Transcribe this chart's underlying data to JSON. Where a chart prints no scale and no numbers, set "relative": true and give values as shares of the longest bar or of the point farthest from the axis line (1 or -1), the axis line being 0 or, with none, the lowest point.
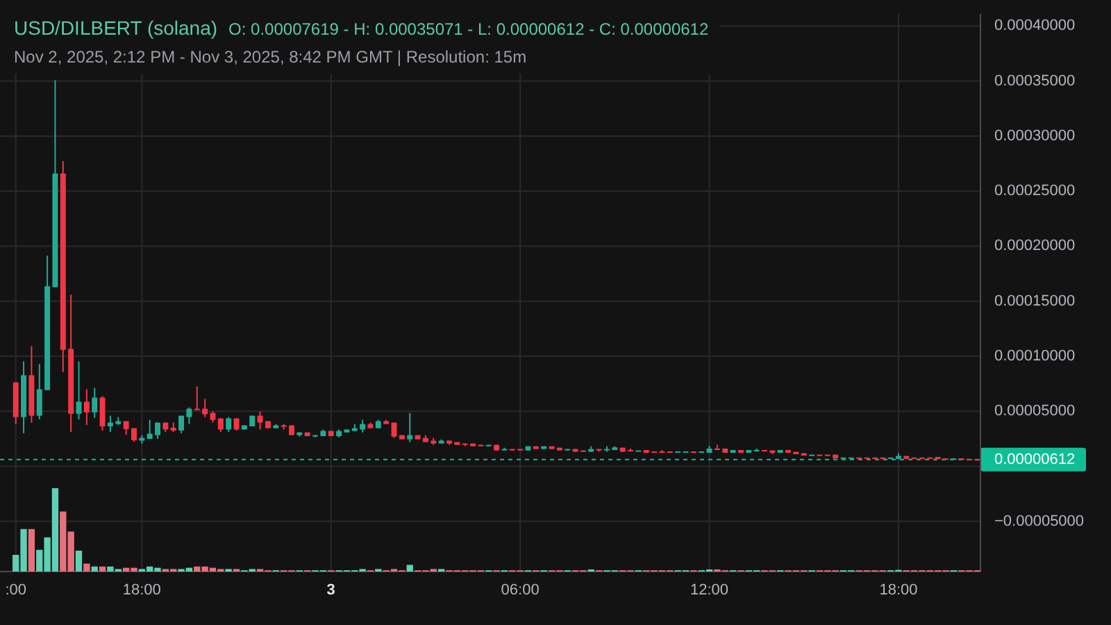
{
  "chart_data": [
    {
      "type": "candlestick",
      "title": "USD/DILBERT (solana)",
      "subtitle": "Nov 2, 2025, 2:12 PM - Nov 3, 2025, 8:42 PM GMT | Resolution: 15m",
      "annotations": [
        "O: 0.00007619 - H: 0.00035071 - L: 0.00000612 - C: 0.00000612"
      ],
      "x": [
        "2025-11-02T14:00",
        "2025-11-02T14:15",
        "2025-11-02T14:30",
        "2025-11-02T14:45",
        "2025-11-02T15:00",
        "2025-11-02T15:15",
        "2025-11-02T15:30",
        "2025-11-02T15:45",
        "2025-11-02T16:00",
        "2025-11-02T16:15",
        "2025-11-02T16:30",
        "2025-11-02T16:45",
        "2025-11-02T17:00",
        "2025-11-02T17:15",
        "2025-11-02T17:30",
        "2025-11-02T17:45",
        "2025-11-02T18:00",
        "2025-11-02T18:15",
        "2025-11-02T18:30",
        "2025-11-02T18:45",
        "2025-11-02T19:00",
        "2025-11-02T19:15",
        "2025-11-02T19:30",
        "2025-11-02T19:45",
        "2025-11-02T20:00",
        "2025-11-02T20:15",
        "2025-11-02T20:30",
        "2025-11-02T20:45",
        "2025-11-02T21:00",
        "2025-11-02T21:15",
        "2025-11-02T21:30",
        "2025-11-02T21:45",
        "2025-11-02T22:00",
        "2025-11-02T22:15",
        "2025-11-02T22:30",
        "2025-11-02T22:45",
        "2025-11-02T23:00",
        "2025-11-02T23:15",
        "2025-11-02T23:30",
        "2025-11-02T23:45",
        "2025-11-03T00:00",
        "2025-11-03T00:15",
        "2025-11-03T00:30",
        "2025-11-03T00:45",
        "2025-11-03T01:00",
        "2025-11-03T01:15",
        "2025-11-03T01:30",
        "2025-11-03T01:45",
        "2025-11-03T02:00",
        "2025-11-03T02:15",
        "2025-11-03T02:30",
        "2025-11-03T02:45",
        "2025-11-03T03:00",
        "2025-11-03T03:15",
        "2025-11-03T03:30",
        "2025-11-03T03:45",
        "2025-11-03T04:00",
        "2025-11-03T04:15",
        "2025-11-03T04:30",
        "2025-11-03T04:45",
        "2025-11-03T05:00",
        "2025-11-03T05:15",
        "2025-11-03T05:30",
        "2025-11-03T05:45",
        "2025-11-03T06:00",
        "2025-11-03T06:15",
        "2025-11-03T06:30",
        "2025-11-03T06:45",
        "2025-11-03T07:00",
        "2025-11-03T07:15",
        "2025-11-03T07:30",
        "2025-11-03T07:45",
        "2025-11-03T08:00",
        "2025-11-03T08:15",
        "2025-11-03T08:30",
        "2025-11-03T08:45",
        "2025-11-03T09:00",
        "2025-11-03T09:15",
        "2025-11-03T09:30",
        "2025-11-03T09:45",
        "2025-11-03T10:00",
        "2025-11-03T10:15",
        "2025-11-03T10:30",
        "2025-11-03T10:45",
        "2025-11-03T11:00",
        "2025-11-03T11:15",
        "2025-11-03T11:30",
        "2025-11-03T11:45",
        "2025-11-03T12:00",
        "2025-11-03T12:15",
        "2025-11-03T12:30",
        "2025-11-03T12:45",
        "2025-11-03T13:00",
        "2025-11-03T13:15",
        "2025-11-03T13:30",
        "2025-11-03T13:45",
        "2025-11-03T14:00",
        "2025-11-03T14:15",
        "2025-11-03T14:30",
        "2025-11-03T14:45",
        "2025-11-03T15:00",
        "2025-11-03T15:15",
        "2025-11-03T15:30",
        "2025-11-03T15:45",
        "2025-11-03T16:00",
        "2025-11-03T16:15",
        "2025-11-03T16:30",
        "2025-11-03T16:45",
        "2025-11-03T17:00",
        "2025-11-03T17:15",
        "2025-11-03T17:30",
        "2025-11-03T17:45",
        "2025-11-03T18:00",
        "2025-11-03T18:15",
        "2025-11-03T18:30",
        "2025-11-03T18:45",
        "2025-11-03T19:00",
        "2025-11-03T19:15",
        "2025-11-03T19:30",
        "2025-11-03T19:45",
        "2025-11-03T20:00",
        "2025-11-03T20:15",
        "2025-11-03T20:30"
      ],
      "ohlc": [
        [
          7.619e-05,
          7.619e-05,
          3.84e-05,
          4.47e-05
        ],
        [
          4.47e-05,
          9.53e-05,
          3e-05,
          8.27e-05
        ],
        [
          8.27e-05,
          0.0001092,
          3.97e-05,
          4.6e-05
        ],
        [
          4.6e-05,
          9.28e-05,
          4.26e-05,
          7e-05
        ],
        [
          6.92e-05,
          0.0001914,
          6.92e-05,
          0.0001636
        ],
        [
          0.0001627,
          0.00035071,
          0.0001627,
          0.000266
        ],
        [
          0.000266,
          0.0002773,
          8.56e-05,
          0.0001058
        ],
        [
          0.0001067,
          0.000156,
          3.12e-05,
          4.77e-05
        ],
        [
          4.77e-05,
          9.53e-05,
          4.26e-05,
          5.87e-05
        ],
        [
          5.87e-05,
          7e-05,
          3.76e-05,
          4.9e-05
        ],
        [
          4.9e-05,
          7.13e-05,
          4.39e-05,
          6.24e-05
        ],
        [
          6.24e-05,
          6.37e-05,
          3.25e-05,
          3.63e-05
        ],
        [
          3.63e-05,
          4.6e-05,
          3.12e-05,
          3.97e-05
        ],
        [
          3.84e-05,
          4.47e-05,
          3.76e-05,
          4.1e-05
        ],
        [
          4.1e-05,
          4.1e-05,
          2.87e-05,
          3.38e-05
        ],
        [
          3.46e-05,
          3.46e-05,
          2.24e-05,
          2.37e-05
        ],
        [
          2.33e-05,
          2.83e-05,
          2.07e-05,
          2.58e-05
        ],
        [
          2.49e-05,
          4.22e-05,
          2.49e-05,
          2.96e-05
        ],
        [
          2.83e-05,
          3.97e-05,
          2.49e-05,
          3.97e-05
        ],
        [
          3.97e-05,
          3.97e-05,
          3.12e-05,
          3.34e-05
        ],
        [
          3.5e-05,
          3.97e-05,
          3.12e-05,
          3.25e-05
        ],
        [
          3.25e-05,
          4.6e-05,
          3e-05,
          4.6e-05
        ],
        [
          4.47e-05,
          5.36e-05,
          3.84e-05,
          5.23e-05
        ],
        [
          5.23e-05,
          7.26e-05,
          5.1e-05,
          5.1e-05
        ],
        [
          5.23e-05,
          6.12e-05,
          4.47e-05,
          4.73e-05
        ],
        [
          4.85e-05,
          4.98e-05,
          3.97e-05,
          4.22e-05
        ],
        [
          4.35e-05,
          4.35e-05,
          3.12e-05,
          3.34e-05
        ],
        [
          3.34e-05,
          4.47e-05,
          3.12e-05,
          4.35e-05
        ],
        [
          4.35e-05,
          4.35e-05,
          3.25e-05,
          3.34e-05
        ],
        [
          3.34e-05,
          3.72e-05,
          3.34e-05,
          3.72e-05
        ],
        [
          3.63e-05,
          4.6e-05,
          3.63e-05,
          4.6e-05
        ],
        [
          4.6e-05,
          4.98e-05,
          3.34e-05,
          3.97e-05
        ],
        [
          4.1e-05,
          4.1e-05,
          3.46e-05,
          3.46e-05
        ],
        [
          3.46e-05,
          3.84e-05,
          3.46e-05,
          3.72e-05
        ],
        [
          3.72e-05,
          3.84e-05,
          3.34e-05,
          3.59e-05
        ],
        [
          3.72e-05,
          3.72e-05,
          2.83e-05,
          2.83e-05
        ],
        [
          2.83e-05,
          3.08e-05,
          2.7e-05,
          3.08e-05
        ],
        [
          3.08e-05,
          3.08e-05,
          2.74e-05,
          2.74e-05
        ],
        [
          2.74e-05,
          2.83e-05,
          2.62e-05,
          2.83e-05
        ],
        [
          2.74e-05,
          3.34e-05,
          2.74e-05,
          3.21e-05
        ],
        [
          3.21e-05,
          3.21e-05,
          2.74e-05,
          2.74e-05
        ],
        [
          2.74e-05,
          3.34e-05,
          2.62e-05,
          3.21e-05
        ],
        [
          3.08e-05,
          3.34e-05,
          3.08e-05,
          3.34e-05
        ],
        [
          3.21e-05,
          3.84e-05,
          3.21e-05,
          3.46e-05
        ],
        [
          3.34e-05,
          4.22e-05,
          3.08e-05,
          3.84e-05
        ],
        [
          3.84e-05,
          3.97e-05,
          3.46e-05,
          3.46e-05
        ],
        [
          3.46e-05,
          4.22e-05,
          3.46e-05,
          4.1e-05
        ],
        [
          4.1e-05,
          4.22e-05,
          3.84e-05,
          3.84e-05
        ],
        [
          3.97e-05,
          3.97e-05,
          2.58e-05,
          2.7e-05
        ],
        [
          2.83e-05,
          2.83e-05,
          2.45e-05,
          2.45e-05
        ],
        [
          2.45e-05,
          4.85e-05,
          2.2e-05,
          2.83e-05
        ],
        [
          2.83e-05,
          2.83e-05,
          2.45e-05,
          2.45e-05
        ],
        [
          2.58e-05,
          2.83e-05,
          2.2e-05,
          2.2e-05
        ],
        [
          2.33e-05,
          2.58e-05,
          1.95e-05,
          2.07e-05
        ],
        [
          2.07e-05,
          2.45e-05,
          2.07e-05,
          2.33e-05
        ],
        [
          2.33e-05,
          2.33e-05,
          1.95e-05,
          2.07e-05
        ],
        [
          2.2e-05,
          2.2e-05,
          1.95e-05,
          1.95e-05
        ],
        [
          2.07e-05,
          2.07e-05,
          1.82e-05,
          1.95e-05
        ],
        [
          2.07e-05,
          2.07e-05,
          1.82e-05,
          1.82e-05
        ],
        [
          1.95e-05,
          1.95e-05,
          1.82e-05,
          1.82e-05
        ],
        [
          1.82e-05,
          1.95e-05,
          1.82e-05,
          1.95e-05
        ],
        [
          1.95e-05,
          1.95e-05,
          1.44e-05,
          1.44e-05
        ],
        [
          1.44e-05,
          1.69e-05,
          1.44e-05,
          1.57e-05
        ],
        [
          1.57e-05,
          1.57e-05,
          1.44e-05,
          1.44e-05
        ],
        [
          1.57e-05,
          1.57e-05,
          1.44e-05,
          1.44e-05
        ],
        [
          1.44e-05,
          1.82e-05,
          1.44e-05,
          1.82e-05
        ],
        [
          1.82e-05,
          1.82e-05,
          1.57e-05,
          1.57e-05
        ],
        [
          1.57e-05,
          1.82e-05,
          1.57e-05,
          1.82e-05
        ],
        [
          1.82e-05,
          1.82e-05,
          1.57e-05,
          1.57e-05
        ],
        [
          1.69e-05,
          1.69e-05,
          1.44e-05,
          1.44e-05
        ],
        [
          1.44e-05,
          1.57e-05,
          1.44e-05,
          1.57e-05
        ],
        [
          1.57e-05,
          1.57e-05,
          1.32e-05,
          1.32e-05
        ],
        [
          1.44e-05,
          1.44e-05,
          1.32e-05,
          1.32e-05
        ],
        [
          1.32e-05,
          1.82e-05,
          1.32e-05,
          1.57e-05
        ],
        [
          1.57e-05,
          1.57e-05,
          1.32e-05,
          1.44e-05
        ],
        [
          1.44e-05,
          1.82e-05,
          1.32e-05,
          1.57e-05
        ],
        [
          1.48e-05,
          1.82e-05,
          1.48e-05,
          1.72e-05
        ],
        [
          1.69e-05,
          1.69e-05,
          1.32e-05,
          1.32e-05
        ],
        [
          1.48e-05,
          1.61e-05,
          1.35e-05,
          1.35e-05
        ],
        [
          1.35e-05,
          1.44e-05,
          1.35e-05,
          1.44e-05
        ],
        [
          1.48e-05,
          1.48e-05,
          1.23e-05,
          1.23e-05
        ],
        [
          1.35e-05,
          1.35e-05,
          1.23e-05,
          1.23e-05
        ],
        [
          1.35e-05,
          1.48e-05,
          1.23e-05,
          1.23e-05
        ],
        [
          1.35e-05,
          1.35e-05,
          1.23e-05,
          1.23e-05
        ],
        [
          1.23e-05,
          1.35e-05,
          1.23e-05,
          1.35e-05
        ],
        [
          1.23e-05,
          1.35e-05,
          1.23e-05,
          1.35e-05
        ],
        [
          1.35e-05,
          1.35e-05,
          1.23e-05,
          1.23e-05
        ],
        [
          1.23e-05,
          1.35e-05,
          1.23e-05,
          1.35e-05
        ],
        [
          1.23e-05,
          1.86e-05,
          1.23e-05,
          1.61e-05
        ],
        [
          1.61e-05,
          1.95e-05,
          1.48e-05,
          1.48e-05
        ],
        [
          1.61e-05,
          1.61e-05,
          1.23e-05,
          1.23e-05
        ],
        [
          1.23e-05,
          1.48e-05,
          1.23e-05,
          1.48e-05
        ],
        [
          1.48e-05,
          1.48e-05,
          1.23e-05,
          1.23e-05
        ],
        [
          1.23e-05,
          1.48e-05,
          1.23e-05,
          1.48e-05
        ],
        [
          1.35e-05,
          1.61e-05,
          1.35e-05,
          1.48e-05
        ],
        [
          1.48e-05,
          1.48e-05,
          1.35e-05,
          1.35e-05
        ],
        [
          1.44e-05,
          1.44e-05,
          1.1e-05,
          1.23e-05
        ],
        [
          1.23e-05,
          1.48e-05,
          1.23e-05,
          1.48e-05
        ],
        [
          1.48e-05,
          1.48e-05,
          1.23e-05,
          1.23e-05
        ],
        [
          1.31e-05,
          1.31e-05,
          1.1e-05,
          1.1e-05
        ],
        [
          1.19e-05,
          1.19e-05,
          9.7e-06,
          9.7e-06
        ],
        [
          9.7e-06,
          1.06e-05,
          9.7e-06,
          1.06e-05
        ],
        [
          1.06e-05,
          1.06e-05,
          9.7e-06,
          9.7e-06
        ],
        [
          1.06e-05,
          1.06e-05,
          9.7e-06,
          9.7e-06
        ],
        [
          1.06e-05,
          1.06e-05,
          7.2e-06,
          7.2e-06
        ],
        [
          7.2e-06,
          8e-06,
          7.2e-06,
          8e-06
        ],
        [
          7.2e-06,
          8e-06,
          7.2e-06,
          8e-06
        ],
        [
          8e-06,
          8e-06,
          7.2e-06,
          7.2e-06
        ],
        [
          8e-06,
          8e-06,
          6.3e-06,
          7.2e-06
        ],
        [
          8e-06,
          8e-06,
          7.2e-06,
          7.2e-06
        ],
        [
          8e-06,
          8e-06,
          6.3e-06,
          7.2e-06
        ],
        [
          7.2e-06,
          8e-06,
          7.2e-06,
          8e-06
        ],
        [
          6.8e-06,
          1.19e-05,
          6.8e-06,
          9.4e-06
        ],
        [
          9.4e-06,
          9.4e-06,
          6.8e-06,
          6.8e-06
        ],
        [
          8e-06,
          8e-06,
          7.2e-06,
          7.2e-06
        ],
        [
          8e-06,
          8e-06,
          7.2e-06,
          7.2e-06
        ],
        [
          8e-06,
          8e-06,
          7.2e-06,
          7.2e-06
        ],
        [
          8.5e-06,
          8.5e-06,
          6.6e-06,
          6.6e-06
        ],
        [
          7.2e-06,
          7.2e-06,
          6.4e-06,
          6.4e-06
        ],
        [
          6.4e-06,
          7.2e-06,
          6.4e-06,
          7.2e-06
        ],
        [
          7.2e-06,
          7.2e-06,
          6.2e-06,
          6.2e-06
        ],
        [
          6.6e-06,
          6.6e-06,
          6.2e-06,
          6.2e-06
        ],
        [
          6.5e-06,
          6.5e-06,
          6.12e-06,
          6.12e-06
        ]
      ],
      "colors": [
        "#f23645",
        "#22ab94",
        "#f23645",
        "#22ab94",
        "#22ab94",
        "#22ab94",
        "#f23645",
        "#f23645",
        "#22ab94",
        "#f23645",
        "#22ab94",
        "#f23645",
        "#22ab94",
        "#22ab94",
        "#f23645",
        "#f23645",
        "#22ab94",
        "#22ab94",
        "#22ab94",
        "#f23645",
        "#f23645",
        "#22ab94",
        "#22ab94",
        "#f23645",
        "#f23645",
        "#f23645",
        "#f23645",
        "#22ab94",
        "#f23645",
        "#22ab94",
        "#22ab94",
        "#f23645",
        "#f23645",
        "#22ab94",
        "#f23645",
        "#f23645",
        "#22ab94",
        "#f23645",
        "#22ab94",
        "#22ab94",
        "#f23645",
        "#22ab94",
        "#22ab94",
        "#22ab94",
        "#22ab94",
        "#f23645",
        "#22ab94",
        "#f23645",
        "#f23645",
        "#f23645",
        "#22ab94",
        "#f23645",
        "#f23645",
        "#f23645",
        "#22ab94",
        "#f23645",
        "#f23645",
        "#f23645",
        "#f23645",
        "#f23645",
        "#22ab94",
        "#f23645",
        "#22ab94",
        "#f23645",
        "#f23645",
        "#22ab94",
        "#f23645",
        "#22ab94",
        "#f23645",
        "#f23645",
        "#22ab94",
        "#f23645",
        "#f23645",
        "#22ab94",
        "#f23645",
        "#22ab94",
        "#22ab94",
        "#f23645",
        "#f23645",
        "#22ab94",
        "#f23645",
        "#f23645",
        "#f23645",
        "#f23645",
        "#22ab94",
        "#22ab94",
        "#f23645",
        "#22ab94",
        "#22ab94",
        "#f23645",
        "#f23645",
        "#22ab94",
        "#f23645",
        "#22ab94",
        "#22ab94",
        "#f23645",
        "#f23645",
        "#22ab94",
        "#f23645",
        "#f23645",
        "#f23645",
        "#22ab94",
        "#f23645",
        "#f23645",
        "#f23645",
        "#22ab94",
        "#22ab94",
        "#f23645",
        "#f23645",
        "#f23645",
        "#f23645",
        "#22ab94",
        "#22ab94",
        "#f23645",
        "#f23645",
        "#f23645",
        "#f23645",
        "#f23645",
        "#f23645",
        "#22ab94",
        "#f23645",
        "#f23645",
        "#f23645"
      ],
      "xlim": [
        "2025-11-02T13:30",
        "2025-11-03T20:36"
      ],
      "xticks": [
        {
          "value": "2025-11-02T14:00",
          "label": ":00"
        },
        {
          "value": "2025-11-02T18:00",
          "label": "18:00"
        },
        {
          "value": "2025-11-03T00:00",
          "label": "3"
        },
        {
          "value": "2025-11-03T06:00",
          "label": "06:00"
        },
        {
          "value": "2025-11-03T12:00",
          "label": "12:00"
        },
        {
          "value": "2025-11-03T18:00",
          "label": "18:00"
        }
      ],
      "ylim": [
        -9.56e-05,
        0.000411
      ],
      "yticks": [
        {
          "value": 0.0004,
          "label": "0.00040000"
        },
        {
          "value": 0.00035,
          "label": "0.00035000"
        },
        {
          "value": 0.0003,
          "label": "0.00030000"
        },
        {
          "value": 0.00025,
          "label": "0.00025000"
        },
        {
          "value": 0.0002,
          "label": "0.00020000"
        },
        {
          "value": 0.00015,
          "label": "0.00015000"
        },
        {
          "value": 0.0001,
          "label": "0.00010000"
        },
        {
          "value": 5e-05,
          "label": "0.00005000"
        },
        {
          "value": 0,
          "label": null
        },
        {
          "value": -5e-05,
          "label": "−0.00005000"
        }
      ],
      "grid": true,
      "ref_lines": [
        {
          "axis": "y",
          "value": 6.12e-06,
          "label": "0.00000612",
          "color": "#10be96",
          "line_style": "dashed"
        }
      ]
    },
    {
      "type": "bar",
      "relative": true,
      "tick_labels": false,
      "x": [
        "2025-11-02T14:00",
        "2025-11-02T14:15",
        "2025-11-02T14:30",
        "2025-11-02T14:45",
        "2025-11-02T15:00",
        "2025-11-02T15:15",
        "2025-11-02T15:30",
        "2025-11-02T15:45",
        "2025-11-02T16:00",
        "2025-11-02T16:15",
        "2025-11-02T16:30",
        "2025-11-02T16:45",
        "2025-11-02T17:00",
        "2025-11-02T17:15",
        "2025-11-02T17:30",
        "2025-11-02T17:45",
        "2025-11-02T18:00",
        "2025-11-02T18:15",
        "2025-11-02T18:30",
        "2025-11-02T18:45",
        "2025-11-02T19:00",
        "2025-11-02T19:15",
        "2025-11-02T19:30",
        "2025-11-02T19:45",
        "2025-11-02T20:00",
        "2025-11-02T20:15",
        "2025-11-02T20:30",
        "2025-11-02T20:45",
        "2025-11-02T21:00",
        "2025-11-02T21:15",
        "2025-11-02T21:30",
        "2025-11-02T21:45",
        "2025-11-02T22:00",
        "2025-11-02T22:15",
        "2025-11-02T22:30",
        "2025-11-02T22:45",
        "2025-11-02T23:00",
        "2025-11-02T23:15",
        "2025-11-02T23:30",
        "2025-11-02T23:45",
        "2025-11-03T00:00",
        "2025-11-03T00:15",
        "2025-11-03T00:30",
        "2025-11-03T00:45",
        "2025-11-03T01:00",
        "2025-11-03T01:15",
        "2025-11-03T01:30",
        "2025-11-03T01:45",
        "2025-11-03T02:00",
        "2025-11-03T02:15",
        "2025-11-03T02:30",
        "2025-11-03T02:45",
        "2025-11-03T03:00",
        "2025-11-03T03:15",
        "2025-11-03T03:30",
        "2025-11-03T03:45",
        "2025-11-03T04:00",
        "2025-11-03T04:15",
        "2025-11-03T04:30",
        "2025-11-03T04:45",
        "2025-11-03T05:00",
        "2025-11-03T05:15",
        "2025-11-03T05:30",
        "2025-11-03T05:45",
        "2025-11-03T06:00",
        "2025-11-03T06:15",
        "2025-11-03T06:30",
        "2025-11-03T06:45",
        "2025-11-03T07:00",
        "2025-11-03T07:15",
        "2025-11-03T07:30",
        "2025-11-03T07:45",
        "2025-11-03T08:00",
        "2025-11-03T08:15",
        "2025-11-03T08:30",
        "2025-11-03T08:45",
        "2025-11-03T09:00",
        "2025-11-03T09:15",
        "2025-11-03T09:30",
        "2025-11-03T09:45",
        "2025-11-03T10:00",
        "2025-11-03T10:15",
        "2025-11-03T10:30",
        "2025-11-03T10:45",
        "2025-11-03T11:00",
        "2025-11-03T11:15",
        "2025-11-03T11:30",
        "2025-11-03T11:45",
        "2025-11-03T12:00",
        "2025-11-03T12:15",
        "2025-11-03T12:30",
        "2025-11-03T12:45",
        "2025-11-03T13:00",
        "2025-11-03T13:15",
        "2025-11-03T13:30",
        "2025-11-03T13:45",
        "2025-11-03T14:00",
        "2025-11-03T14:15",
        "2025-11-03T14:30",
        "2025-11-03T14:45",
        "2025-11-03T15:00",
        "2025-11-03T15:15",
        "2025-11-03T15:30",
        "2025-11-03T15:45",
        "2025-11-03T16:00",
        "2025-11-03T16:15",
        "2025-11-03T16:30",
        "2025-11-03T16:45",
        "2025-11-03T17:00",
        "2025-11-03T17:15",
        "2025-11-03T17:30",
        "2025-11-03T17:45",
        "2025-11-03T18:00",
        "2025-11-03T18:15",
        "2025-11-03T18:30",
        "2025-11-03T18:45",
        "2025-11-03T19:00",
        "2025-11-03T19:15",
        "2025-11-03T19:30",
        "2025-11-03T19:45",
        "2025-11-03T20:00",
        "2025-11-03T20:15",
        "2025-11-03T20:30"
      ],
      "values": [
        0.2,
        0.51,
        0.51,
        0.26,
        0.41,
        1,
        0.72,
        0.48,
        0.25,
        0.095,
        0.06,
        0.06,
        0.06,
        0.03,
        0.045,
        0.045,
        0.03,
        0.06,
        0.045,
        0.03,
        0.03,
        0.03,
        0.045,
        0.06,
        0.06,
        0.045,
        0.03,
        0.03,
        0.03,
        0.015,
        0.03,
        0.03,
        0.015,
        0.015,
        0.015,
        0.015,
        0.015,
        0.015,
        0.015,
        0.015,
        0.015,
        0.015,
        0.015,
        0.015,
        0.03,
        0.015,
        0.03,
        0.015,
        0.03,
        0.015,
        0.08,
        0.015,
        0.015,
        0.03,
        0.03,
        0.015,
        0.015,
        0.015,
        0.015,
        0.015,
        0.015,
        0.015,
        0.015,
        0.015,
        0.015,
        0.015,
        0.015,
        0.015,
        0.015,
        0.015,
        0.015,
        0.015,
        0.015,
        0.025,
        0.015,
        0.015,
        0.015,
        0.015,
        0.015,
        0.015,
        0.015,
        0.015,
        0.015,
        0.015,
        0.015,
        0.015,
        0.015,
        0.015,
        0.025,
        0.025,
        0.015,
        0.015,
        0.015,
        0.015,
        0.015,
        0.015,
        0.015,
        0.015,
        0.015,
        0.015,
        0.015,
        0.015,
        0.015,
        0.015,
        0.015,
        0.015,
        0.015,
        0.015,
        0.015,
        0.015,
        0.015,
        0.015,
        0.02,
        0.015,
        0.015,
        0.015,
        0.015,
        0.015,
        0.015,
        0.015,
        0.015,
        0.015,
        0.015
      ],
      "colors": [
        "#5fd0b5",
        "#5fd0b5",
        "#e8707c",
        "#5fd0b5",
        "#5fd0b5",
        "#5fd0b5",
        "#e8707c",
        "#e8707c",
        "#5fd0b5",
        "#e8707c",
        "#5fd0b5",
        "#e8707c",
        "#5fd0b5",
        "#5fd0b5",
        "#e8707c",
        "#e8707c",
        "#5fd0b5",
        "#5fd0b5",
        "#5fd0b5",
        "#e8707c",
        "#e8707c",
        "#5fd0b5",
        "#5fd0b5",
        "#e8707c",
        "#e8707c",
        "#e8707c",
        "#e8707c",
        "#5fd0b5",
        "#e8707c",
        "#5fd0b5",
        "#5fd0b5",
        "#e8707c",
        "#e8707c",
        "#5fd0b5",
        "#e8707c",
        "#e8707c",
        "#5fd0b5",
        "#e8707c",
        "#5fd0b5",
        "#5fd0b5",
        "#e8707c",
        "#5fd0b5",
        "#5fd0b5",
        "#5fd0b5",
        "#5fd0b5",
        "#e8707c",
        "#5fd0b5",
        "#e8707c",
        "#e8707c",
        "#e8707c",
        "#5fd0b5",
        "#e8707c",
        "#e8707c",
        "#e8707c",
        "#5fd0b5",
        "#e8707c",
        "#e8707c",
        "#e8707c",
        "#e8707c",
        "#e8707c",
        "#5fd0b5",
        "#e8707c",
        "#5fd0b5",
        "#e8707c",
        "#e8707c",
        "#5fd0b5",
        "#e8707c",
        "#5fd0b5",
        "#e8707c",
        "#e8707c",
        "#5fd0b5",
        "#e8707c",
        "#e8707c",
        "#5fd0b5",
        "#e8707c",
        "#5fd0b5",
        "#5fd0b5",
        "#e8707c",
        "#e8707c",
        "#5fd0b5",
        "#e8707c",
        "#e8707c",
        "#e8707c",
        "#e8707c",
        "#5fd0b5",
        "#5fd0b5",
        "#e8707c",
        "#5fd0b5",
        "#5fd0b5",
        "#e8707c",
        "#e8707c",
        "#5fd0b5",
        "#e8707c",
        "#5fd0b5",
        "#5fd0b5",
        "#e8707c",
        "#e8707c",
        "#5fd0b5",
        "#e8707c",
        "#e8707c",
        "#e8707c",
        "#5fd0b5",
        "#e8707c",
        "#e8707c",
        "#e8707c",
        "#5fd0b5",
        "#5fd0b5",
        "#e8707c",
        "#e8707c",
        "#e8707c",
        "#e8707c",
        "#5fd0b5",
        "#5fd0b5",
        "#e8707c",
        "#e8707c",
        "#e8707c",
        "#e8707c",
        "#e8707c",
        "#e8707c",
        "#5fd0b5",
        "#e8707c",
        "#e8707c",
        "#e8707c"
      ],
      "xlim": [
        "2025-11-02T13:30",
        "2025-11-03T20:36"
      ]
    }
  ]
}
